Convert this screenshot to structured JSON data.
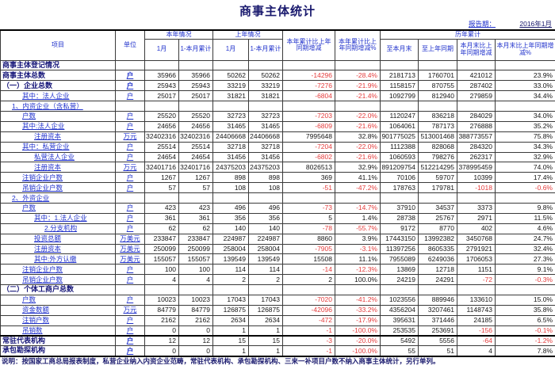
{
  "header": {
    "title": "商事主体统计",
    "report_label": "报告期：",
    "report_value": "2016年1月"
  },
  "colors": {
    "accent_blue": "#2233cc",
    "navy": "#141478",
    "negative_red": "#e43c3c"
  },
  "table": {
    "headers": {
      "item": "项目",
      "unit": "单位",
      "this_year": "本年情况",
      "last_year": "上年情况",
      "ytd_diff": "本年累计比上年同期增减",
      "ytd_diff_pct": "本年累计比上年同期增减%",
      "historical": "历年累计"
    },
    "sub_headers": [
      "1月",
      "1-本月累计",
      "1月",
      "1-本月累计",
      "至本月末",
      "至上年同期",
      "本月末比上年同期增减",
      "本月末比上年同期增减%"
    ],
    "rows": [
      {
        "label": "商事主体登记情况",
        "type": "section",
        "indent": 0,
        "unit": "",
        "values": [
          "",
          "",
          "",
          "",
          "",
          "",
          "",
          "",
          "",
          ""
        ]
      },
      {
        "label": "商事主体总数",
        "type": "section",
        "indent": 0,
        "unit": "户",
        "values": [
          "35966",
          "35966",
          "50262",
          "50262",
          "-14296",
          "-28.4%",
          "2181713",
          "1760701",
          "421012",
          "23.9%"
        ]
      },
      {
        "label": "（一）企业总数",
        "type": "section",
        "indent": 0,
        "unit": "户",
        "values": [
          "25943",
          "25943",
          "33219",
          "33219",
          "-7276",
          "-21.9%",
          "1158157",
          "870755",
          "287402",
          "33.0%"
        ]
      },
      {
        "label": "其中：法人企业",
        "type": "link",
        "indent": 2,
        "unit": "户",
        "values": [
          "25017",
          "25017",
          "31821",
          "31821",
          "-6804",
          "-21.4%",
          "1092799",
          "812940",
          "279859",
          "34.4%"
        ]
      },
      {
        "label": "1、内资企业（含私营）",
        "type": "link",
        "indent": 1,
        "unit": "",
        "values": [
          "",
          "",
          "",
          "",
          "",
          "",
          "",
          "",
          "",
          ""
        ]
      },
      {
        "label": "户数",
        "type": "link",
        "indent": 2,
        "unit": "户",
        "values": [
          "25520",
          "25520",
          "32723",
          "32723",
          "-7203",
          "-22.0%",
          "1120247",
          "836218",
          "284029",
          "34.0%"
        ]
      },
      {
        "label": "其中:法人企业",
        "type": "link",
        "indent": 2,
        "unit": "户",
        "values": [
          "24656",
          "24656",
          "31465",
          "31465",
          "-6809",
          "-21.6%",
          "1064061",
          "787173",
          "276888",
          "35.2%"
        ]
      },
      {
        "label": "注册资本",
        "type": "link",
        "indent": 3,
        "unit": "万元",
        "values": [
          "32402316",
          "32402316",
          "24406668",
          "24406668",
          "7995648",
          "32.8%",
          "901775025",
          "513001468",
          "388773557",
          "75.8%"
        ]
      },
      {
        "label": "其中：私营企业",
        "type": "link",
        "indent": 2,
        "unit": "户",
        "values": [
          "25514",
          "25514",
          "32718",
          "32718",
          "-7204",
          "-22.0%",
          "1112388",
          "828068",
          "284320",
          "34.3%"
        ]
      },
      {
        "label": "私营法人企业",
        "type": "link",
        "indent": 3,
        "unit": "户",
        "values": [
          "24654",
          "24654",
          "31456",
          "31456",
          "-6802",
          "-21.6%",
          "1060593",
          "798276",
          "262317",
          "32.9%"
        ]
      },
      {
        "label": "注册资本",
        "type": "link",
        "indent": 3,
        "unit": "万元",
        "values": [
          "32401716",
          "32401716",
          "24375203",
          "24375203",
          "8026513",
          "32.9%",
          "891209754",
          "512214295",
          "378995459",
          "74.0%"
        ]
      },
      {
        "label": "注销企业户数",
        "type": "link",
        "indent": 2,
        "unit": "户",
        "values": [
          "1267",
          "1267",
          "898",
          "898",
          "369",
          "41.1%",
          "70106",
          "59707",
          "10399",
          "17.4%"
        ]
      },
      {
        "label": "吊销企业户数",
        "type": "link",
        "indent": 2,
        "unit": "户",
        "values": [
          "57",
          "57",
          "108",
          "108",
          "-51",
          "-47.2%",
          "178763",
          "179781",
          "-1018",
          "-0.6%"
        ]
      },
      {
        "label": "2、外资企业",
        "type": "link",
        "indent": 1,
        "unit": "",
        "values": [
          "",
          "",
          "",
          "",
          "",
          "",
          "",
          "",
          "",
          ""
        ]
      },
      {
        "label": "户数",
        "type": "link",
        "indent": 2,
        "unit": "户",
        "values": [
          "423",
          "423",
          "496",
          "496",
          "-73",
          "-14.7%",
          "37910",
          "34537",
          "3373",
          "9.8%"
        ]
      },
      {
        "label": "其中：1.法人企业",
        "type": "link",
        "indent": 3,
        "unit": "户",
        "values": [
          "361",
          "361",
          "356",
          "356",
          "5",
          "1.4%",
          "28738",
          "25767",
          "2971",
          "11.5%"
        ]
      },
      {
        "label": "2.分支机构",
        "type": "link",
        "indent": 4,
        "unit": "户",
        "values": [
          "62",
          "62",
          "140",
          "140",
          "-78",
          "-55.7%",
          "9172",
          "8770",
          "402",
          "4.6%"
        ]
      },
      {
        "label": "投资总额",
        "type": "link",
        "indent": 3,
        "unit": "万美元",
        "values": [
          "233847",
          "233847",
          "224987",
          "224987",
          "8860",
          "3.9%",
          "17443150",
          "13992382",
          "3450768",
          "24.7%"
        ]
      },
      {
        "label": "注册资本",
        "type": "link",
        "indent": 3,
        "unit": "万美元",
        "values": [
          "250099",
          "250099",
          "258004",
          "258004",
          "-7905",
          "-3.1%",
          "11397256",
          "8605335",
          "2791921",
          "32.4%"
        ]
      },
      {
        "label": "其中:外方认缴",
        "type": "link",
        "indent": 3,
        "unit": "万美元",
        "values": [
          "155057",
          "155057",
          "139549",
          "139549",
          "15508",
          "11.1%",
          "7955089",
          "6249036",
          "1706053",
          "27.3%"
        ]
      },
      {
        "label": "注销企业户数",
        "type": "link",
        "indent": 2,
        "unit": "户",
        "values": [
          "100",
          "100",
          "114",
          "114",
          "-14",
          "-12.3%",
          "13869",
          "12718",
          "1151",
          "9.1%"
        ]
      },
      {
        "label": "吊销企业户数",
        "type": "link",
        "indent": 2,
        "unit": "户",
        "values": [
          "4",
          "4",
          "2",
          "2",
          "2",
          "100.0%",
          "24219",
          "24291",
          "-72",
          "-0.3%"
        ]
      },
      {
        "label": "（二）个体工商户总数",
        "type": "section",
        "indent": 0,
        "unit": "",
        "values": [
          "",
          "",
          "",
          "",
          "",
          "",
          "",
          "",
          "",
          ""
        ]
      },
      {
        "label": "户数",
        "type": "link",
        "indent": 2,
        "unit": "户",
        "values": [
          "10023",
          "10023",
          "17043",
          "17043",
          "-7020",
          "-41.2%",
          "1023556",
          "889946",
          "133610",
          "15.0%"
        ]
      },
      {
        "label": "资金数额",
        "type": "link",
        "indent": 2,
        "unit": "万元",
        "values": [
          "84779",
          "84779",
          "126875",
          "126875",
          "-42096",
          "-33.2%",
          "4356204",
          "3207461",
          "1148743",
          "35.8%"
        ]
      },
      {
        "label": "注销户数",
        "type": "link",
        "indent": 2,
        "unit": "户",
        "values": [
          "2162",
          "2162",
          "2634",
          "2634",
          "-472",
          "-17.9%",
          "395631",
          "371446",
          "24185",
          "6.5%"
        ]
      },
      {
        "label": "吊销数",
        "type": "link",
        "indent": 2,
        "unit": "户",
        "values": [
          "0",
          "0",
          "1",
          "1",
          "-1",
          "-100.0%",
          "253535",
          "253691",
          "-156",
          "-0.1%"
        ]
      },
      {
        "label": "常驻代表机构",
        "type": "section",
        "indent": 0,
        "unit": "户",
        "thick_top": true,
        "values": [
          "12",
          "12",
          "15",
          "15",
          "-3",
          "-20.0%",
          "5492",
          "5556",
          "-64",
          "-1.2%"
        ]
      },
      {
        "label": "承包勘探机构",
        "type": "section",
        "indent": 0,
        "unit": "户",
        "values": [
          "0",
          "0",
          "1",
          "1",
          "-1",
          "-100.0%",
          "55",
          "51",
          "4",
          "7.8%"
        ]
      }
    ]
  },
  "footnote": "说明：按国家工商总局报表制度，私营企业纳入内资企业范畴，常驻代表机构、承包勘探机构、三来一补项目户数不纳入商事主体统计，另行单列。"
}
